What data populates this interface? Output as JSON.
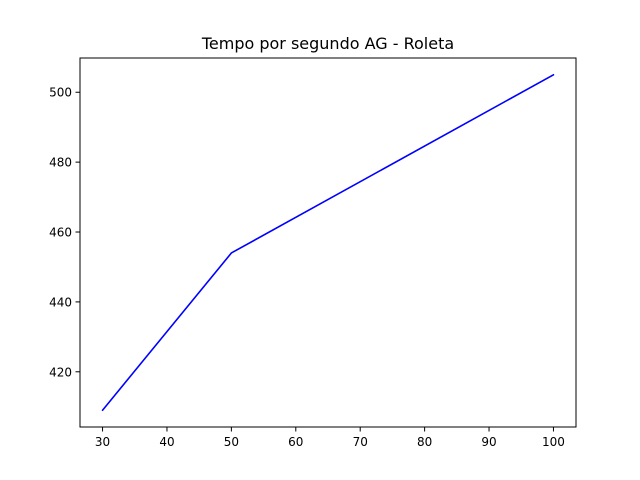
{
  "chart_data": {
    "type": "line",
    "title": "Tempo por segundo AG - Roleta",
    "xlabel": "",
    "ylabel": "",
    "x": [
      30,
      50,
      100
    ],
    "series": [
      {
        "values": [
          409,
          454,
          505
        ],
        "color": "#0000ff"
      }
    ],
    "xlim": [
      26.5,
      103.5
    ],
    "ylim": [
      404.2,
      509.8
    ],
    "xticks": [
      30,
      40,
      50,
      60,
      70,
      80,
      90,
      100
    ],
    "yticks": [
      420,
      440,
      460,
      480,
      500
    ],
    "grid": false,
    "legend": "none"
  }
}
